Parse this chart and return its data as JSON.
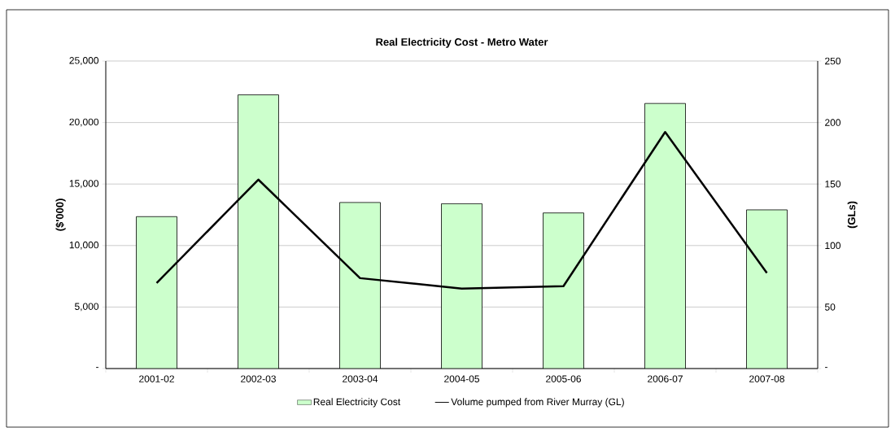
{
  "chart_data": {
    "type": "bar",
    "title": "Real Electricity Cost - Metro Water",
    "ylabel": "($'000)",
    "y2label": "(GLs)",
    "categories": [
      "2001-02",
      "2002-03",
      "2003-04",
      "2004-05",
      "2005-06",
      "2006-07",
      "2007-08"
    ],
    "series": [
      {
        "name": "Real Electricity Cost",
        "color": "#ccffcc",
        "values": [
          12350,
          22250,
          13500,
          13400,
          12650,
          21550,
          12900
        ]
      },
      {
        "name": "Volume pumped from River Murray (GL)",
        "type": "line",
        "axis": "y2",
        "color": "#000000",
        "values": [
          69.5,
          153.6,
          73.5,
          65,
          67,
          192.3,
          77.7
        ]
      }
    ],
    "ylim": [
      0,
      25000
    ],
    "yticks": [
      {
        "value": 0,
        "label": "-"
      },
      {
        "value": 5000,
        "label": "5,000"
      },
      {
        "value": 10000,
        "label": "10,000"
      },
      {
        "value": 15000,
        "label": "15,000"
      },
      {
        "value": 20000,
        "label": "20,000"
      },
      {
        "value": 25000,
        "label": "25,000"
      }
    ],
    "y2lim": [
      0,
      250
    ],
    "y2ticks": [
      {
        "value": 0,
        "label": "-"
      },
      50,
      100,
      150,
      200,
      250
    ],
    "grid": "y",
    "legend": "bottom"
  }
}
